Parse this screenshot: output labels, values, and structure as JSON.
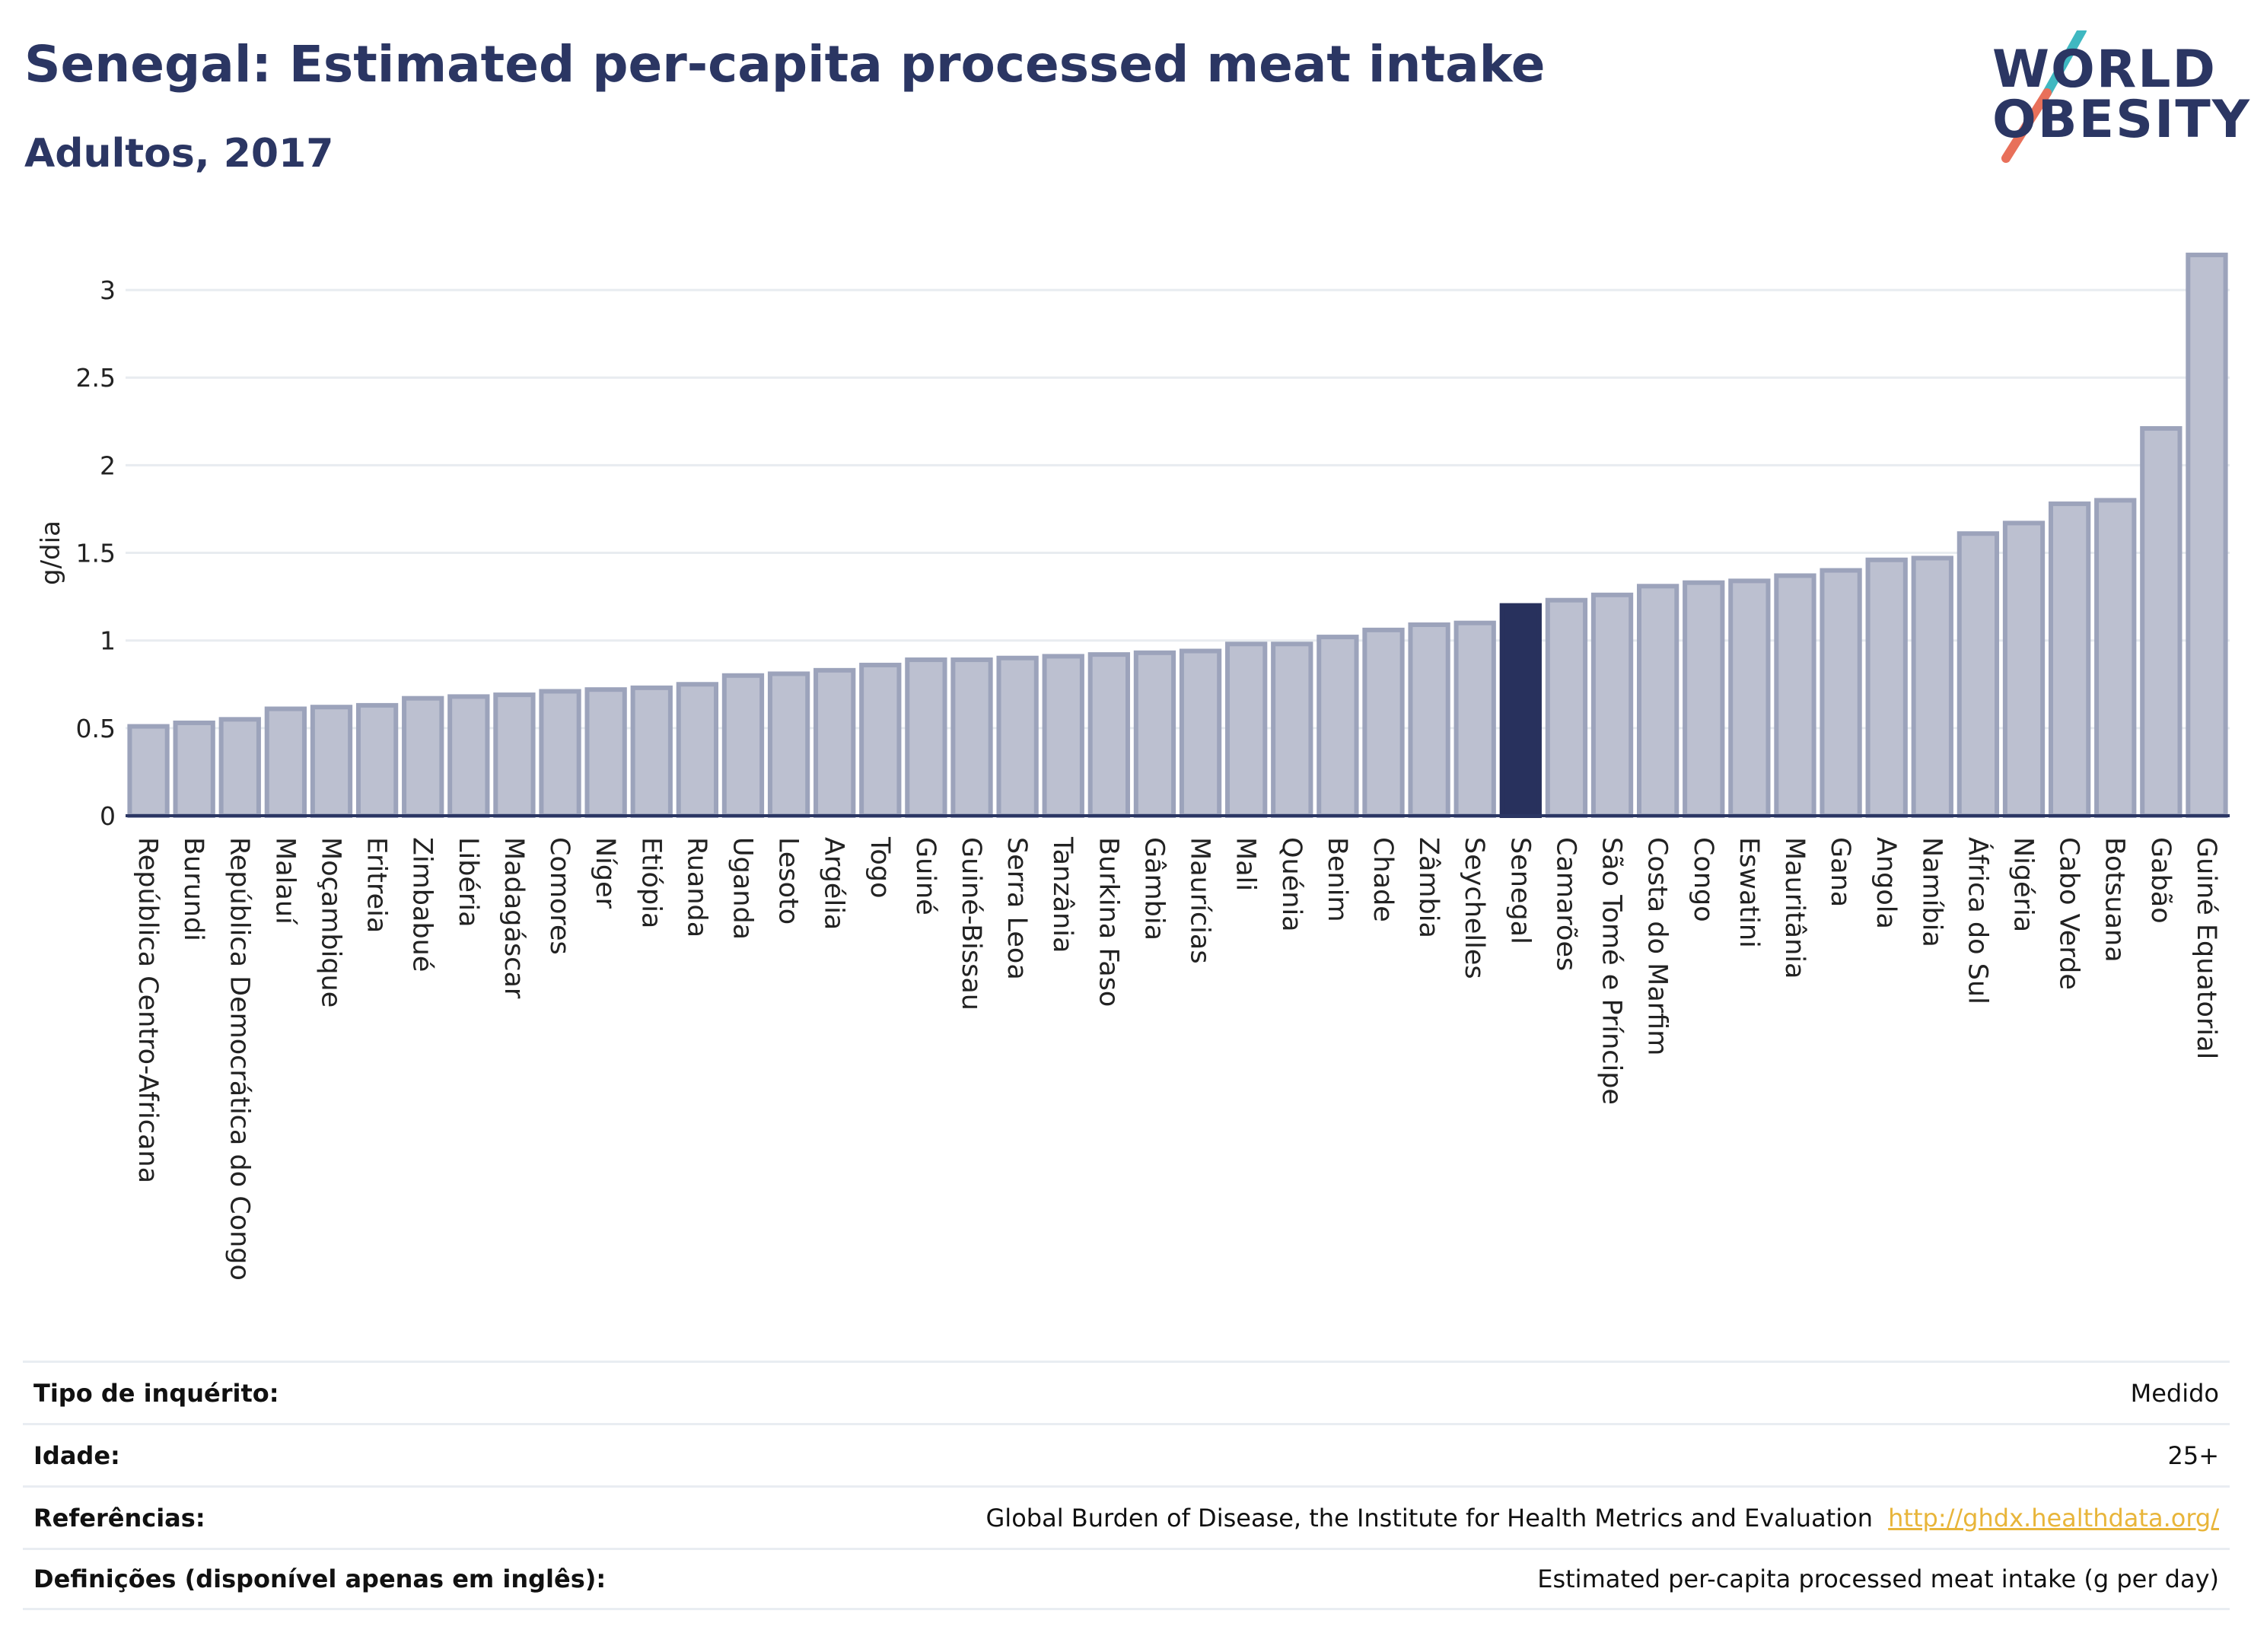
{
  "header": {
    "title": "Senegal: Estimated per-capita processed meat intake",
    "subtitle": "Adultos, 2017"
  },
  "logo": {
    "line1": "WORLD",
    "line2": "OBESITY",
    "accent_colors": [
      "#3fb8c1",
      "#e8705a"
    ]
  },
  "colors": {
    "bar": "#bcc0d0",
    "bar_border": "#9ca3bb",
    "highlight": "#28315d",
    "axis": "#2b3663",
    "grid": "#e8ecf0"
  },
  "chart_data": {
    "type": "bar",
    "ylabel": "g/dia",
    "ylim": [
      0,
      3.3
    ],
    "yticks": [
      0,
      0.5,
      1,
      1.5,
      2,
      2.5,
      3
    ],
    "ytick_labels": [
      "0",
      "0.5",
      "1",
      "1.5",
      "2",
      "2.5",
      "3"
    ],
    "highlight": "Senegal",
    "grid": true,
    "categories": [
      "República Centro-Africana",
      "Burundi",
      "República Democrática do Congo",
      "Malauí",
      "Moçambique",
      "Eritreia",
      "Zimbabué",
      "Libéria",
      "Madagáscar",
      "Comores",
      "Níger",
      "Etiópia",
      "Ruanda",
      "Uganda",
      "Lesoto",
      "Argélia",
      "Togo",
      "Guiné",
      "Guiné-Bissau",
      "Serra Leoa",
      "Tanzânia",
      "Burkina Faso",
      "Gâmbia",
      "Maurícias",
      "Mali",
      "Quénia",
      "Benim",
      "Chade",
      "Zâmbia",
      "Seychelles",
      "Senegal",
      "Camarões",
      "São Tomé e Príncipe",
      "Costa do Marfim",
      "Congo",
      "Eswatini",
      "Mauritânia",
      "Gana",
      "Angola",
      "Namíbia",
      "África do Sul",
      "Nigéria",
      "Cabo Verde",
      "Botsuana",
      "Gabão",
      "Guiné Equatorial"
    ],
    "values": [
      0.51,
      0.53,
      0.55,
      0.61,
      0.62,
      0.63,
      0.67,
      0.68,
      0.69,
      0.71,
      0.72,
      0.73,
      0.75,
      0.8,
      0.81,
      0.83,
      0.86,
      0.89,
      0.89,
      0.9,
      0.91,
      0.92,
      0.93,
      0.94,
      0.98,
      0.98,
      1.02,
      1.06,
      1.09,
      1.1,
      1.2,
      1.23,
      1.26,
      1.31,
      1.33,
      1.34,
      1.37,
      1.4,
      1.46,
      1.47,
      1.61,
      1.67,
      1.78,
      1.8,
      2.21,
      3.2
    ]
  },
  "info": {
    "rows": [
      {
        "label": "Tipo de inquérito:",
        "value": "Medido"
      },
      {
        "label": "Idade:",
        "value": "25+"
      },
      {
        "label": "Referências:",
        "value": "Global Burden of Disease, the Institute for Health Metrics and Evaluation",
        "link": "http://ghdx.healthdata.org/"
      },
      {
        "label": "Definições (disponível apenas em inglês):",
        "value": "Estimated per-capita processed meat intake (g per day)"
      }
    ]
  }
}
